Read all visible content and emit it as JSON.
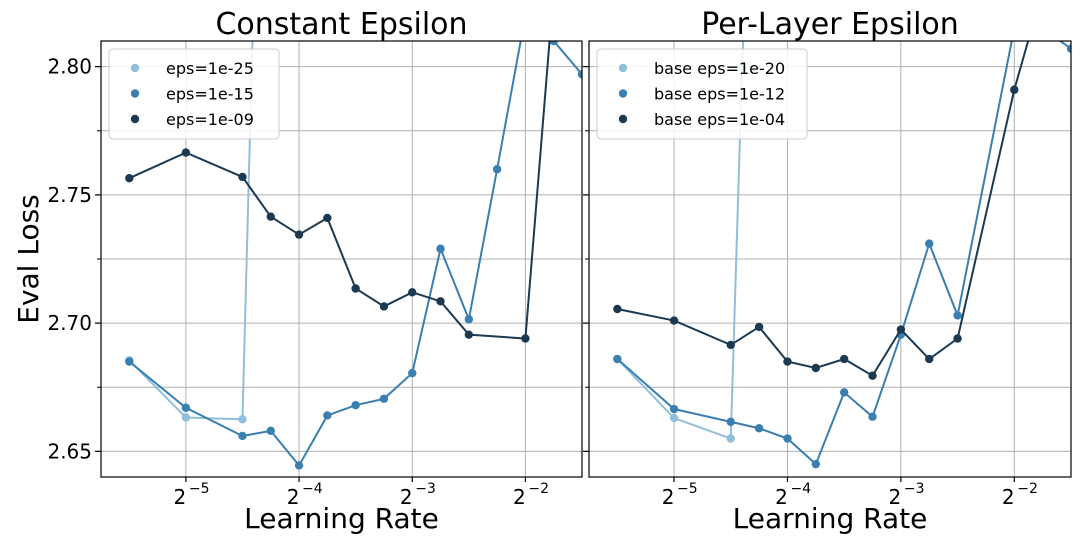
{
  "chart_data": [
    {
      "type": "line",
      "title": "Constant Epsilon",
      "xlabel": "Learning Rate",
      "ylabel": "Eval Loss",
      "xscale": "log2",
      "xlim_log2": [
        -5.75,
        -1.5
      ],
      "ylim": [
        2.64,
        2.81
      ],
      "x_ticks": [
        {
          "base": "2",
          "exp": "−5",
          "log2": -5
        },
        {
          "base": "2",
          "exp": "−4",
          "log2": -4
        },
        {
          "base": "2",
          "exp": "−3",
          "log2": -3
        },
        {
          "base": "2",
          "exp": "−2",
          "log2": -2
        }
      ],
      "y_ticks": [
        "2.65",
        "2.70",
        "2.75",
        "2.80"
      ],
      "y_tick_values": [
        2.65,
        2.7,
        2.75,
        2.8
      ],
      "grid": true,
      "legend_position": "upper-left",
      "series": [
        {
          "name": "eps=1e-25",
          "color": "#91bfdb",
          "x_log2": [
            -5.5,
            -5.0,
            -4.5,
            -4.4,
            -4.2
          ],
          "y": [
            2.6855,
            2.6632,
            2.6625,
            2.83,
            2.9
          ]
        },
        {
          "name": "eps=1e-15",
          "color": "#3a7fb0",
          "x_log2": [
            -5.5,
            -5.0,
            -4.5,
            -4.25,
            -4.0,
            -3.75,
            -3.5,
            -3.25,
            -3.0,
            -2.75,
            -2.5,
            -2.25,
            -2.0,
            -1.75,
            -1.5
          ],
          "y": [
            2.685,
            2.667,
            2.656,
            2.658,
            2.6445,
            2.664,
            2.668,
            2.6705,
            2.6805,
            2.729,
            2.7015,
            2.76,
            2.82,
            2.81,
            2.797
          ]
        },
        {
          "name": "eps=1e-09",
          "color": "#1b3a52",
          "x_log2": [
            -5.5,
            -5.0,
            -4.5,
            -4.25,
            -4.0,
            -3.75,
            -3.5,
            -3.25,
            -3.0,
            -2.75,
            -2.5,
            -2.0,
            -1.75
          ],
          "y": [
            2.7565,
            2.7665,
            2.757,
            2.7415,
            2.7345,
            2.741,
            2.7135,
            2.7065,
            2.712,
            2.7085,
            2.6955,
            2.694,
            2.83
          ]
        }
      ]
    },
    {
      "type": "line",
      "title": "Per-Layer Epsilon",
      "xlabel": "Learning Rate",
      "ylabel": "",
      "xscale": "log2",
      "xlim_log2": [
        -5.75,
        -1.5
      ],
      "ylim": [
        2.64,
        2.81
      ],
      "x_ticks": [
        {
          "base": "2",
          "exp": "−5",
          "log2": -5
        },
        {
          "base": "2",
          "exp": "−4",
          "log2": -4
        },
        {
          "base": "2",
          "exp": "−3",
          "log2": -3
        },
        {
          "base": "2",
          "exp": "−2",
          "log2": -2
        }
      ],
      "y_ticks": [],
      "y_tick_values": [
        2.65,
        2.7,
        2.75,
        2.8
      ],
      "grid": true,
      "legend_position": "upper-left",
      "series": [
        {
          "name": "base eps=1e-20",
          "color": "#91bfdb",
          "x_log2": [
            -5.5,
            -5.0,
            -4.5,
            -4.4,
            -4.3
          ],
          "y": [
            2.686,
            2.663,
            2.655,
            2.8,
            2.9
          ]
        },
        {
          "name": "base eps=1e-12",
          "color": "#3a7fb0",
          "x_log2": [
            -5.5,
            -5.0,
            -4.5,
            -4.25,
            -4.0,
            -3.75,
            -3.5,
            -3.25,
            -3.0,
            -2.75,
            -2.5,
            -2.0,
            -1.75,
            -1.5
          ],
          "y": [
            2.686,
            2.6665,
            2.6615,
            2.659,
            2.655,
            2.645,
            2.673,
            2.6635,
            2.6955,
            2.731,
            2.703,
            2.815,
            2.815,
            2.807
          ]
        },
        {
          "name": "base eps=1e-04",
          "color": "#1b3a52",
          "x_log2": [
            -5.5,
            -5.0,
            -4.5,
            -4.25,
            -4.0,
            -3.75,
            -3.5,
            -3.25,
            -3.0,
            -2.75,
            -2.5,
            -2.0,
            -1.75
          ],
          "y": [
            2.7055,
            2.701,
            2.6915,
            2.6985,
            2.685,
            2.6825,
            2.686,
            2.6795,
            2.6975,
            2.686,
            2.694,
            2.791,
            2.83
          ]
        }
      ]
    }
  ]
}
